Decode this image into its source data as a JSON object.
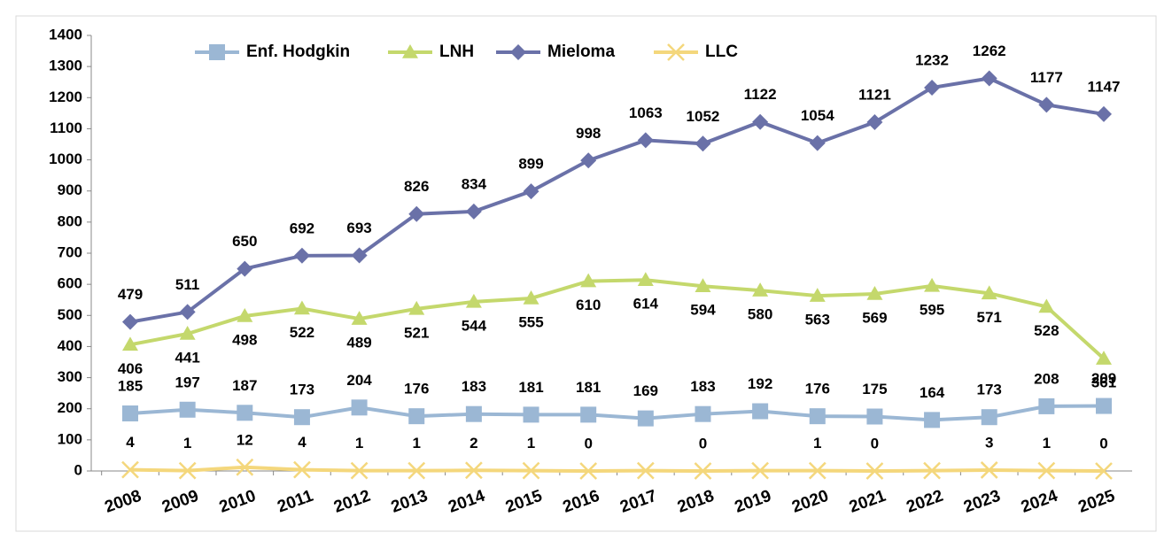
{
  "chart_data": {
    "type": "line",
    "categories": [
      "2008",
      "2009",
      "2010",
      "2011",
      "2012",
      "2013",
      "2014",
      "2015",
      "2016",
      "2017",
      "2018",
      "2019",
      "2020",
      "2021",
      "2022",
      "2023",
      "2024",
      "2025"
    ],
    "series": [
      {
        "name": "Enf. Hodgkin",
        "color": "#9bb7d4",
        "marker": "square",
        "label_position": "above",
        "values": [
          185,
          197,
          187,
          173,
          204,
          176,
          183,
          181,
          181,
          169,
          183,
          192,
          176,
          175,
          164,
          173,
          208,
          209
        ]
      },
      {
        "name": "LNH",
        "color": "#c4d86c",
        "marker": "triangle",
        "label_position": "below",
        "values": [
          406,
          441,
          498,
          522,
          489,
          521,
          544,
          555,
          610,
          614,
          594,
          580,
          563,
          569,
          595,
          571,
          528,
          361
        ]
      },
      {
        "name": "Mieloma",
        "color": "#6a71a8",
        "marker": "diamond",
        "label_position": "above",
        "values": [
          479,
          511,
          650,
          692,
          693,
          826,
          834,
          899,
          998,
          1063,
          1052,
          1122,
          1054,
          1121,
          1232,
          1262,
          1177,
          1147
        ]
      },
      {
        "name": "LLC",
        "color": "#f4d77c",
        "marker": "x",
        "label_position": "above",
        "values": [
          4,
          1,
          12,
          4,
          1,
          1,
          2,
          1,
          0,
          1,
          0,
          1,
          1,
          0,
          1,
          3,
          1,
          0
        ],
        "value_labels": [
          "4",
          "1",
          "12",
          "4",
          "1",
          "1",
          "2",
          "1",
          "0",
          null,
          "0",
          null,
          "1",
          "0",
          null,
          "3",
          "1",
          "0"
        ]
      }
    ],
    "ylim": [
      0,
      1400
    ],
    "yticks": [
      0,
      100,
      200,
      300,
      400,
      500,
      600,
      700,
      800,
      900,
      1000,
      1100,
      1200,
      1300,
      1400
    ],
    "legend": "top"
  }
}
